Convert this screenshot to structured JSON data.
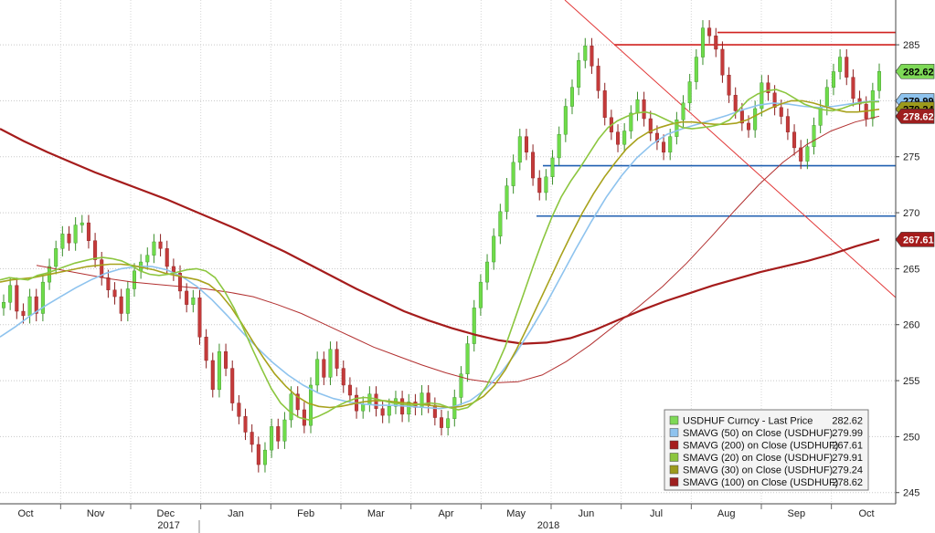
{
  "chart_data": {
    "type": "line",
    "y_axis": {
      "min": 244,
      "max": 289,
      "side": "right",
      "ticks": [
        245,
        250,
        255,
        260,
        265,
        270,
        275,
        280,
        285
      ]
    },
    "x_axis": {
      "months": [
        "Oct",
        "Nov",
        "Dec",
        "Jan",
        "Feb",
        "Mar",
        "Apr",
        "May",
        "Jun",
        "Jul",
        "Aug",
        "Sep",
        "Oct"
      ],
      "years": [
        "2017",
        "2018"
      ]
    },
    "grid": true,
    "legend": {
      "placement": "bottom-right",
      "entries": [
        {
          "label": "USDHUF Curncy - Last Price",
          "value": "282.62",
          "color": "#7ed957"
        },
        {
          "label": "SMAVG (50)  on Close (USDHUF)",
          "value": "279.99",
          "color": "#8ec3ee"
        },
        {
          "label": "SMAVG (200)  on Close (USDHUF)",
          "value": "267.61",
          "color": "#a51c1c"
        },
        {
          "label": "SMAVG (20)  on Close (USDHUF)",
          "value": "279.91",
          "color": "#8cc63f"
        },
        {
          "label": "SMAVG (30)  on Close (USDHUF)",
          "value": "279.24",
          "color": "#9c9a1c"
        },
        {
          "label": "SMAVG (100)  on Close (USDHUF)",
          "value": "278.62",
          "color": "#9e1f1f"
        }
      ]
    },
    "badges": [
      {
        "value": "282.62",
        "y": 282.62,
        "bg": "#7ed957",
        "fg": "#000000"
      },
      {
        "value": "279.99",
        "y": 279.99,
        "bg": "#8ec3ee",
        "fg": "#000000"
      },
      {
        "value": "279.24",
        "y": 279.24,
        "bg": "#9c9a1c",
        "fg": "#000000"
      },
      {
        "value": "278.62",
        "y": 278.62,
        "bg": "#9e1f1f",
        "fg": "#ffffff"
      },
      {
        "value": "267.61",
        "y": 267.61,
        "bg": "#a51c1c",
        "fg": "#ffffff"
      }
    ],
    "horizontal_levels": [
      {
        "y": 286.1,
        "color": "#d0201e"
      },
      {
        "y": 285.0,
        "color": "#d0201e"
      },
      {
        "y": 274.2,
        "color": "#1f5fb0"
      },
      {
        "y": 269.7,
        "color": "#1f5fb0"
      }
    ],
    "series": {
      "price": [
        262.0,
        263.5,
        261.2,
        260.8,
        262.5,
        261.0,
        263.8,
        265.2,
        266.8,
        268.1,
        267.3,
        268.9,
        269.1,
        267.5,
        265.8,
        264.2,
        263.1,
        262.5,
        261.0,
        263.2,
        264.8,
        265.6,
        266.2,
        267.4,
        266.8,
        265.2,
        264.6,
        263.0,
        261.8,
        262.4,
        258.9,
        256.8,
        254.2,
        257.6,
        256.1,
        253.0,
        251.8,
        250.4,
        249.3,
        247.5,
        248.8,
        250.9,
        249.6,
        251.5,
        253.8,
        252.4,
        251.0,
        254.6,
        256.9,
        255.3,
        257.8,
        256.1,
        254.6,
        253.7,
        252.3,
        252.9,
        253.8,
        252.5,
        251.9,
        252.7,
        253.4,
        252.0,
        253.1,
        252.6,
        253.9,
        252.8,
        251.7,
        250.8,
        251.6,
        253.5,
        255.6,
        258.3,
        261.5,
        263.8,
        265.6,
        267.9,
        270.1,
        272.4,
        274.5,
        276.8,
        275.4,
        273.1,
        271.8,
        273.2,
        274.9,
        277.0,
        279.5,
        281.2,
        283.6,
        284.9,
        283.1,
        280.9,
        278.5,
        277.2,
        276.1,
        277.3,
        278.9,
        280.1,
        278.4,
        277.1,
        276.3,
        275.4,
        276.8,
        278.3,
        279.8,
        281.7,
        283.9,
        286.5,
        285.8,
        284.6,
        282.3,
        280.5,
        279.1,
        278.0,
        277.4,
        279.3,
        281.6,
        280.7,
        279.4,
        278.6,
        277.2,
        275.8,
        274.6,
        275.9,
        277.8,
        279.4,
        281.2,
        282.6,
        283.9,
        282.1,
        280.2,
        279.7,
        278.4,
        280.9,
        282.62
      ],
      "sma20": [
        264.0,
        264.2,
        264.1,
        264.0,
        264.4,
        264.6,
        264.9,
        265.2,
        265.5,
        265.7,
        265.9,
        266.0,
        265.9,
        265.7,
        265.3,
        264.8,
        264.5,
        264.4,
        264.5,
        264.7,
        264.9,
        265.0,
        264.8,
        264.2,
        263.0,
        261.5,
        259.7,
        257.8,
        256.0,
        254.3,
        253.0,
        252.2,
        251.7,
        251.5,
        251.8,
        252.2,
        252.7,
        253.1,
        253.4,
        253.5,
        253.4,
        253.2,
        253.0,
        252.9,
        252.8,
        252.9,
        253.0,
        252.9,
        252.6,
        252.4,
        252.6,
        253.3,
        254.5,
        256.1,
        258.0,
        260.4,
        262.8,
        265.2,
        267.5,
        269.6,
        271.4,
        272.8,
        274.0,
        275.3,
        276.6,
        277.6,
        278.2,
        278.6,
        278.9,
        279.0,
        278.8,
        278.4,
        278.0,
        277.6,
        277.5,
        277.6,
        277.7,
        277.9,
        278.3,
        279.2,
        280.1,
        280.6,
        280.9,
        281.0,
        280.7,
        280.2,
        279.7,
        279.4,
        279.2,
        279.1,
        279.3,
        279.6,
        279.8,
        279.9,
        279.91
      ],
      "sma30": [
        263.8,
        264.0,
        264.1,
        264.2,
        264.4,
        264.6,
        264.8,
        265.0,
        265.2,
        265.3,
        265.4,
        265.4,
        265.3,
        265.1,
        264.9,
        264.6,
        264.4,
        264.2,
        264.0,
        263.6,
        262.8,
        261.6,
        260.1,
        258.5,
        257.0,
        255.6,
        254.5,
        253.6,
        253.0,
        252.7,
        252.6,
        252.7,
        252.9,
        253.1,
        253.2,
        253.2,
        253.1,
        253.0,
        252.9,
        252.8,
        252.7,
        252.6,
        252.7,
        253.0,
        253.6,
        254.6,
        256.0,
        257.8,
        259.8,
        261.9,
        264.0,
        266.1,
        268.1,
        270.0,
        271.7,
        273.2,
        274.5,
        275.7,
        276.6,
        277.2,
        277.6,
        277.9,
        278.1,
        278.1,
        278.0,
        277.9,
        277.9,
        278.0,
        278.3,
        278.8,
        279.3,
        279.7,
        280.0,
        280.0,
        279.8,
        279.5,
        279.2,
        279.0,
        279.0,
        279.1,
        279.24
      ],
      "sma50": [
        258.9,
        259.8,
        260.8,
        261.7,
        262.5,
        263.3,
        264.0,
        264.6,
        265.0,
        265.2,
        265.2,
        264.9,
        264.3,
        263.4,
        262.2,
        260.8,
        259.3,
        257.9,
        256.6,
        255.5,
        254.6,
        253.9,
        253.4,
        253.1,
        252.9,
        252.8,
        252.8,
        252.7,
        252.6,
        252.5,
        252.7,
        253.2,
        254.2,
        255.6,
        257.4,
        259.5,
        261.8,
        264.3,
        266.8,
        269.2,
        271.4,
        273.3,
        274.9,
        276.1,
        277.0,
        277.5,
        277.9,
        278.3,
        278.7,
        279.2,
        279.6,
        279.8,
        279.7,
        279.5,
        279.4,
        279.5,
        279.7,
        279.9,
        279.99
      ],
      "sma100": [
        265.3,
        264.9,
        264.5,
        264.1,
        263.8,
        263.6,
        263.4,
        263.2,
        262.9,
        262.5,
        261.8,
        261.0,
        260.0,
        259.0,
        258.0,
        257.2,
        256.4,
        255.7,
        255.1,
        254.8,
        254.9,
        255.5,
        256.7,
        258.2,
        259.9,
        261.6,
        263.4,
        265.5,
        267.8,
        270.2,
        272.5,
        274.5,
        276.1,
        277.3,
        278.1,
        278.62
      ],
      "sma200": [
        277.5,
        276.4,
        275.4,
        274.5,
        273.6,
        272.8,
        272.0,
        271.2,
        270.3,
        269.4,
        268.5,
        267.5,
        266.5,
        265.4,
        264.3,
        263.2,
        262.2,
        261.2,
        260.4,
        259.7,
        259.1,
        258.6,
        258.3,
        258.4,
        258.8,
        259.5,
        260.4,
        261.3,
        262.1,
        262.8,
        263.5,
        264.1,
        264.7,
        265.2,
        265.7,
        266.3,
        267.0,
        267.61
      ]
    }
  }
}
